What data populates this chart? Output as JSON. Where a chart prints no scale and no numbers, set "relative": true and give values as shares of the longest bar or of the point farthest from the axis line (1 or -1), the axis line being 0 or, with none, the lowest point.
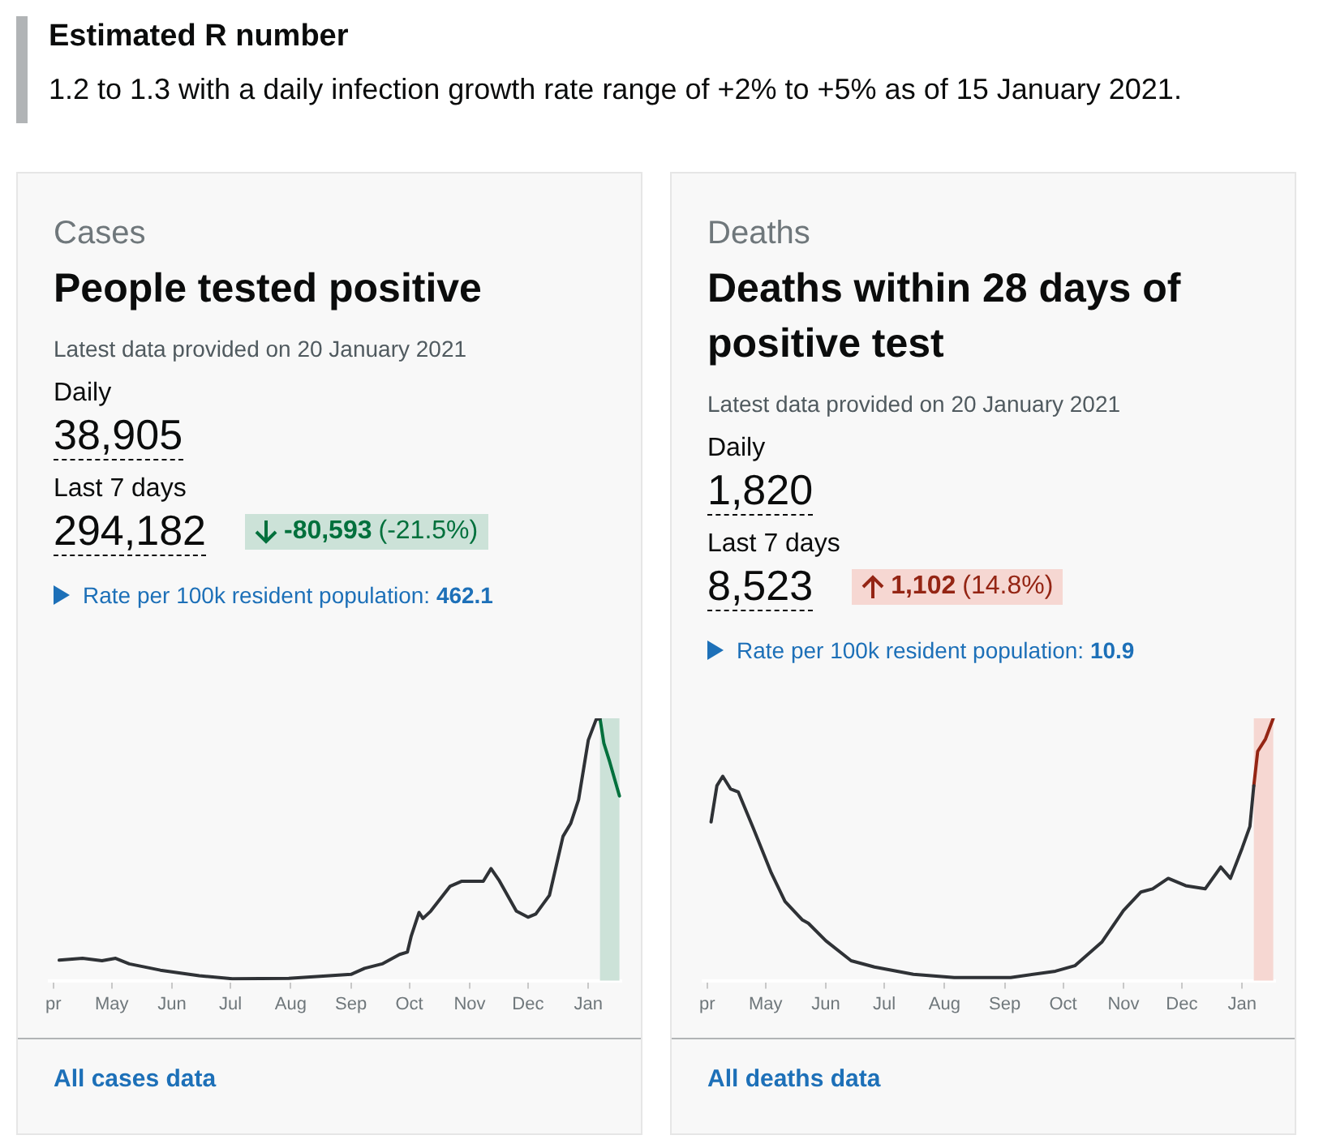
{
  "chart_data": [
    {
      "type": "other",
      "title": "Estimated R number",
      "annotations": [
        "1.2 to 1.3 with a daily infection growth rate range of +2% to +5% as of 15 January 2021."
      ]
    },
    {
      "type": "line",
      "relative": true,
      "subtitle": "Cases",
      "title": "People tested positive",
      "annotations": [
        "Latest data provided on 20 January 2021",
        "Daily",
        "38,905",
        "Last 7 days",
        "294,182",
        "-80,593",
        "(-21.5%)",
        "Rate per 100k resident population:",
        "462.1",
        "All cases data"
      ],
      "xlim": [
        "2020-03-30",
        "2021-01-18"
      ],
      "xticks": [
        {
          "value": "2020-04-01",
          "label": "pr"
        },
        {
          "value": "2020-05-01",
          "label": "May"
        },
        {
          "value": "2020-06-01",
          "label": "Jun"
        },
        {
          "value": "2020-07-01",
          "label": "Jul"
        },
        {
          "value": "2020-08-01",
          "label": "Aug"
        },
        {
          "value": "2020-09-01",
          "label": "Sep"
        },
        {
          "value": "2020-10-01",
          "label": "Oct"
        },
        {
          "value": "2020-11-01",
          "label": "Nov"
        },
        {
          "value": "2020-12-01",
          "label": "Dec"
        },
        {
          "value": "2021-01-01",
          "label": "Jan"
        }
      ],
      "series": [
        {
          "color": "#2f3236",
          "x": [
            "2020-04-04",
            "2020-04-16",
            "2020-04-26",
            "2020-05-03",
            "2020-05-10",
            "2020-05-26",
            "2020-06-15",
            "2020-07-02",
            "2020-07-31",
            "2020-09-01",
            "2020-09-08",
            "2020-09-17",
            "2020-09-26",
            "2020-09-30",
            "2020-10-02",
            "2020-10-06",
            "2020-10-08",
            "2020-10-12",
            "2020-10-22",
            "2020-10-28",
            "2020-11-08",
            "2020-11-12",
            "2020-11-16",
            "2020-11-25",
            "2020-12-01",
            "2020-12-05",
            "2020-12-12",
            "2020-12-19",
            "2020-12-23",
            "2020-12-27",
            "2021-01-01",
            "2021-01-05",
            "2021-01-07"
          ],
          "values": [
            0.078,
            0.085,
            0.076,
            0.085,
            0.064,
            0.04,
            0.019,
            0.007,
            0.009,
            0.024,
            0.047,
            0.064,
            0.1,
            0.109,
            0.171,
            0.26,
            0.237,
            0.265,
            0.36,
            0.379,
            0.379,
            0.427,
            0.384,
            0.265,
            0.242,
            0.254,
            0.325,
            0.55,
            0.6,
            0.69,
            0.917,
            0.995,
            1
          ]
        },
        {
          "color": "#00703c",
          "x": [
            "2021-01-07",
            "2021-01-09",
            "2021-01-12",
            "2021-01-17"
          ],
          "values": [
            1,
            0.905,
            0.834,
            0.704
          ]
        }
      ],
      "bands": [
        {
          "axis": "x",
          "from": "2021-01-07",
          "to": "2021-01-17",
          "color": "#cce2d8"
        }
      ],
      "tick_labels": "x",
      "grid": false,
      "legend": false
    },
    {
      "type": "line",
      "relative": true,
      "subtitle": "Deaths",
      "title": "Deaths within 28 days of positive test",
      "annotations": [
        "Latest data provided on 20 January 2021",
        "Daily",
        "1,820",
        "Last 7 days",
        "8,523",
        "1,102",
        "(14.8%)",
        "Rate per 100k resident population:",
        "10.9",
        "All deaths data"
      ],
      "xlim": [
        "2020-03-30",
        "2021-01-18"
      ],
      "xticks": [
        {
          "value": "2020-04-01",
          "label": "pr"
        },
        {
          "value": "2020-05-01",
          "label": "May"
        },
        {
          "value": "2020-06-01",
          "label": "Jun"
        },
        {
          "value": "2020-07-01",
          "label": "Jul"
        },
        {
          "value": "2020-08-01",
          "label": "Aug"
        },
        {
          "value": "2020-09-01",
          "label": "Sep"
        },
        {
          "value": "2020-10-01",
          "label": "Oct"
        },
        {
          "value": "2020-11-01",
          "label": "Nov"
        },
        {
          "value": "2020-12-01",
          "label": "Dec"
        },
        {
          "value": "2021-01-01",
          "label": "Jan"
        }
      ],
      "series": [
        {
          "color": "#2f3236",
          "x": [
            "2020-04-03",
            "2020-04-06",
            "2020-04-09",
            "2020-04-13",
            "2020-04-17",
            "2020-04-25",
            "2020-05-04",
            "2020-05-11",
            "2020-05-20",
            "2020-05-23",
            "2020-06-01",
            "2020-06-14",
            "2020-06-26",
            "2020-07-16",
            "2020-08-06",
            "2020-09-04",
            "2020-09-27",
            "2020-10-07",
            "2020-10-21",
            "2020-11-01",
            "2020-11-10",
            "2020-11-16",
            "2020-11-24",
            "2020-12-03",
            "2020-12-13",
            "2020-12-21",
            "2020-12-26",
            "2021-01-01",
            "2021-01-05",
            "2021-01-07"
          ],
          "values": [
            0.605,
            0.743,
            0.779,
            0.731,
            0.719,
            0.576,
            0.41,
            0.302,
            0.231,
            0.219,
            0.152,
            0.076,
            0.052,
            0.024,
            0.012,
            0.012,
            0.036,
            0.057,
            0.148,
            0.267,
            0.338,
            0.35,
            0.39,
            0.362,
            0.35,
            0.433,
            0.39,
            0.505,
            0.588,
            0.743
          ]
        },
        {
          "color": "#942514",
          "x": [
            "2021-01-07",
            "2021-01-09",
            "2021-01-13",
            "2021-01-17"
          ],
          "values": [
            0.743,
            0.874,
            0.921,
            1
          ]
        }
      ],
      "bands": [
        {
          "axis": "x",
          "from": "2021-01-07",
          "to": "2021-01-17",
          "color": "#f6d7d2"
        }
      ],
      "tick_labels": "x",
      "grid": false,
      "legend": false
    }
  ]
}
